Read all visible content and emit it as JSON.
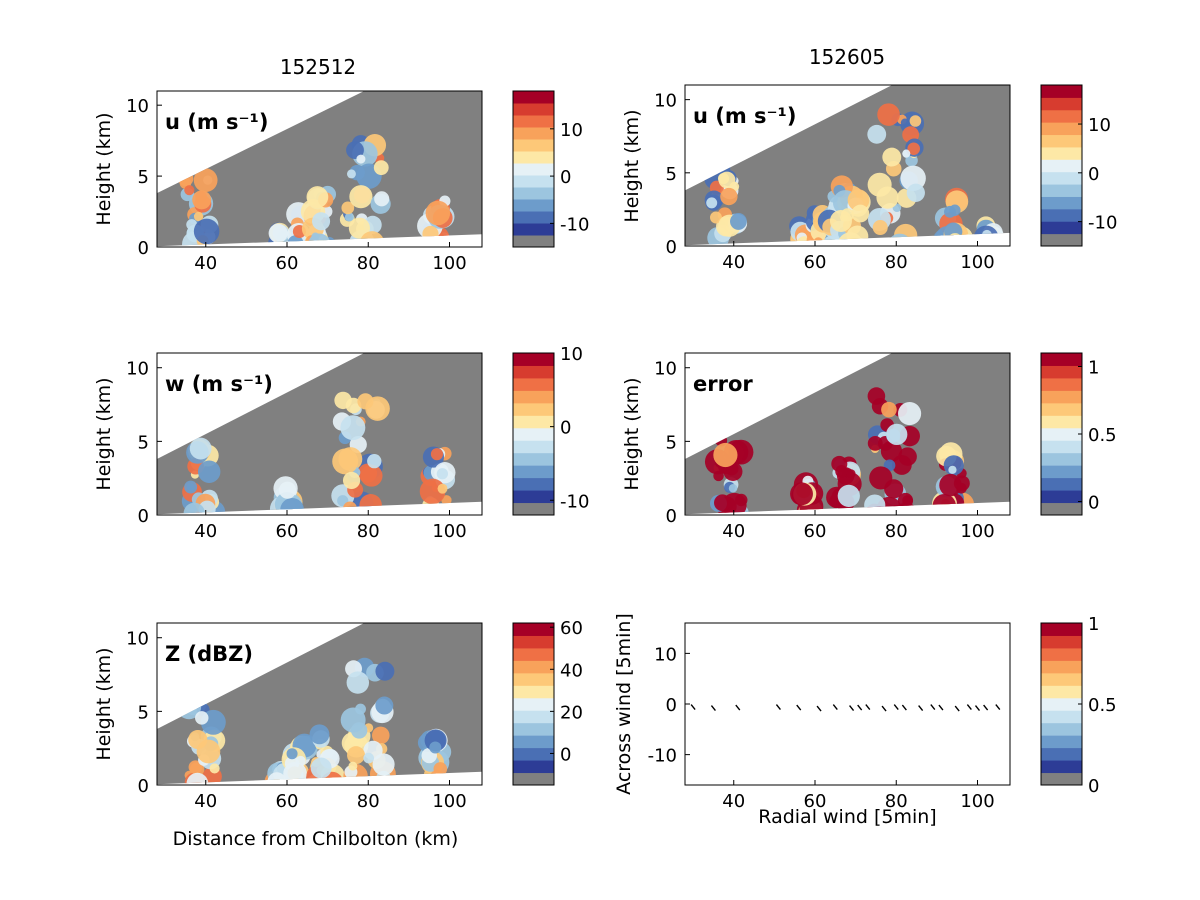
{
  "figure": {
    "panel_titles": [
      "152512",
      "152605"
    ],
    "xlabel_bottom_left": "Distance from Chilbolton (km)",
    "ylabel_height": "Height (km)"
  },
  "colors": {
    "masked_gray": "#808080",
    "scale": [
      "#2d3c96",
      "#4a6fb4",
      "#6d9ccb",
      "#9cc5df",
      "#c6e1ef",
      "#e6f1f6",
      "#fde8a6",
      "#fdc878",
      "#f8a25b",
      "#ef7045",
      "#d73c2f",
      "#a50026"
    ]
  },
  "chart_data": [
    {
      "type": "heatmap",
      "panel": "u-152512",
      "title": "152512",
      "label": "u (m s⁻¹)",
      "ylabel": "Height (km)",
      "xlim": [
        28,
        108
      ],
      "ylim": [
        0,
        11
      ],
      "xticks": [
        40,
        60,
        80,
        100
      ],
      "yticks": [
        0,
        5,
        10
      ],
      "colorbar": {
        "ticks": [
          10,
          0,
          -10
        ],
        "range": [
          -15,
          18
        ]
      },
      "features": [
        [
          38,
          3.2,
          5.4
        ],
        [
          58.5,
          0.8,
          1.2
        ],
        [
          63.5,
          1.5,
          2.5
        ],
        [
          68.5,
          2.5,
          4.0
        ],
        [
          79,
          4.5,
          8.0
        ],
        [
          97,
          2.0,
          3.5
        ]
      ]
    },
    {
      "type": "heatmap",
      "panel": "u-152605",
      "title": "152605",
      "label": "u (m s⁻¹)",
      "ylabel": "Height (km)",
      "xlim": [
        28,
        108
      ],
      "ylim": [
        0,
        11
      ],
      "xticks": [
        40,
        60,
        80,
        100
      ],
      "yticks": [
        0,
        5,
        10
      ],
      "colorbar": {
        "ticks": [
          10,
          0,
          -10
        ],
        "range": [
          -15,
          18
        ]
      },
      "features": [
        [
          38,
          3.5,
          5.8
        ],
        [
          57,
          1.0,
          1.5
        ],
        [
          61,
          1.5,
          2.5
        ],
        [
          65,
          2.0,
          3.8
        ],
        [
          69,
          3.0,
          4.5
        ],
        [
          80,
          5.0,
          9.5
        ],
        [
          94,
          2.0,
          3.5
        ],
        [
          103,
          1.0,
          1.5
        ]
      ]
    },
    {
      "type": "heatmap",
      "panel": "w-152512",
      "label": "w (m s⁻¹)",
      "ylabel": "Height (km)",
      "xlim": [
        28,
        108
      ],
      "ylim": [
        0,
        11
      ],
      "xticks": [
        40,
        60,
        80,
        100
      ],
      "yticks": [
        0,
        5,
        10
      ],
      "colorbar": {
        "ticks": [
          10,
          0,
          -10
        ],
        "range": [
          -12,
          10
        ]
      },
      "features": [
        [
          39,
          3.0,
          5.0
        ],
        [
          60,
          1.5,
          2.3
        ],
        [
          78,
          4.5,
          8.2
        ],
        [
          97,
          2.5,
          4.5
        ]
      ]
    },
    {
      "type": "heatmap",
      "panel": "error-152605",
      "label": "error",
      "ylabel": "Height (km)",
      "xlim": [
        28,
        108
      ],
      "ylim": [
        0,
        11
      ],
      "xticks": [
        40,
        60,
        80,
        100
      ],
      "yticks": [
        0,
        5,
        10
      ],
      "colorbar": {
        "ticks": [
          1,
          0.5,
          0
        ],
        "range": [
          -0.1,
          1.1
        ]
      },
      "features": [
        [
          39,
          3.0,
          5.5
        ],
        [
          58,
          1.5,
          2.5
        ],
        [
          67,
          2.0,
          4.0
        ],
        [
          79,
          4.5,
          8.5
        ],
        [
          94,
          2.5,
          4.5
        ]
      ]
    },
    {
      "type": "heatmap",
      "panel": "Z-152512",
      "label": "Z (dBZ)",
      "ylabel": "Height (km)",
      "xlabel": "Distance from Chilbolton (km)",
      "xlim": [
        28,
        108
      ],
      "ylim": [
        0,
        11
      ],
      "xticks": [
        40,
        60,
        80,
        100
      ],
      "yticks": [
        0,
        5,
        10
      ],
      "colorbar": {
        "ticks": [
          60,
          40,
          20,
          0
        ],
        "range": [
          -15,
          62
        ]
      },
      "features": [
        [
          39,
          3.5,
          6.0
        ],
        [
          58,
          1.0,
          1.5
        ],
        [
          63,
          2.0,
          3.0
        ],
        [
          69,
          2.5,
          4.0
        ],
        [
          80,
          4.5,
          8.5
        ],
        [
          96,
          2.0,
          3.5
        ]
      ]
    },
    {
      "type": "scatter",
      "panel": "wind-vectors",
      "xlabel": "Radial wind [5min]",
      "ylabel": "Across wind [5min]",
      "xlim": [
        28,
        108
      ],
      "ylim": [
        -16,
        16
      ],
      "xticks": [
        40,
        60,
        80,
        100
      ],
      "yticks": [
        10,
        0,
        -10
      ],
      "colorbar": {
        "ticks": [
          1,
          0.5,
          0
        ],
        "range": [
          0,
          1
        ]
      },
      "x": [
        30,
        35,
        41,
        51,
        56,
        61,
        65,
        69,
        71,
        73,
        77,
        80,
        82,
        86,
        89,
        91,
        95,
        98,
        100,
        102,
        105
      ],
      "y": [
        -0.5,
        -0.7,
        -0.6,
        -0.5,
        -0.6,
        -0.8,
        -0.5,
        -0.7,
        -0.6,
        -0.5,
        -0.8,
        -0.5,
        -0.6,
        -0.7,
        -0.5,
        -0.6,
        -0.8,
        -0.5,
        -0.7,
        -0.6,
        -0.5
      ]
    }
  ]
}
